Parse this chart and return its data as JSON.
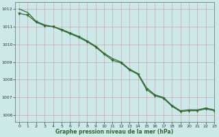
{
  "title": "Graphe pression niveau de la mer (hPa)",
  "background_color": "#cce8e8",
  "grid_color": "#b0cece",
  "line_color": "#2d6a2d",
  "xlim": [
    -0.5,
    23
  ],
  "ylim": [
    1005.6,
    1012.4
  ],
  "yticks": [
    1006,
    1007,
    1008,
    1009,
    1010,
    1011,
    1012
  ],
  "xticks": [
    0,
    1,
    2,
    3,
    4,
    5,
    6,
    7,
    8,
    9,
    10,
    11,
    12,
    13,
    14,
    15,
    16,
    17,
    18,
    19,
    20,
    21,
    22,
    23
  ],
  "series1_x": [
    0,
    1,
    2,
    3,
    4,
    5,
    6,
    7,
    8,
    9,
    10,
    11,
    12,
    13,
    14,
    15,
    16,
    17,
    18,
    19,
    20,
    21,
    22,
    23
  ],
  "series1_y": [
    1012.0,
    1011.8,
    1011.3,
    1011.1,
    1011.0,
    1010.85,
    1010.65,
    1010.45,
    1010.2,
    1009.9,
    1009.5,
    1009.2,
    1009.0,
    1008.6,
    1008.35,
    1007.55,
    1007.15,
    1007.0,
    1006.55,
    1006.25,
    1006.3,
    1006.3,
    1006.4,
    1006.3
  ],
  "series2_x": [
    0,
    1,
    2,
    3,
    4,
    5,
    6,
    7,
    8,
    9,
    10,
    11,
    12,
    13,
    14,
    15,
    16,
    17,
    18,
    19,
    20,
    21,
    22,
    23
  ],
  "series2_y": [
    1011.75,
    1011.65,
    1011.25,
    1011.05,
    1011.0,
    1010.8,
    1010.6,
    1010.4,
    1010.15,
    1009.85,
    1009.45,
    1009.1,
    1008.95,
    1008.55,
    1008.3,
    1007.45,
    1007.1,
    1006.95,
    1006.5,
    1006.2,
    1006.25,
    1006.25,
    1006.35,
    1006.25
  ]
}
